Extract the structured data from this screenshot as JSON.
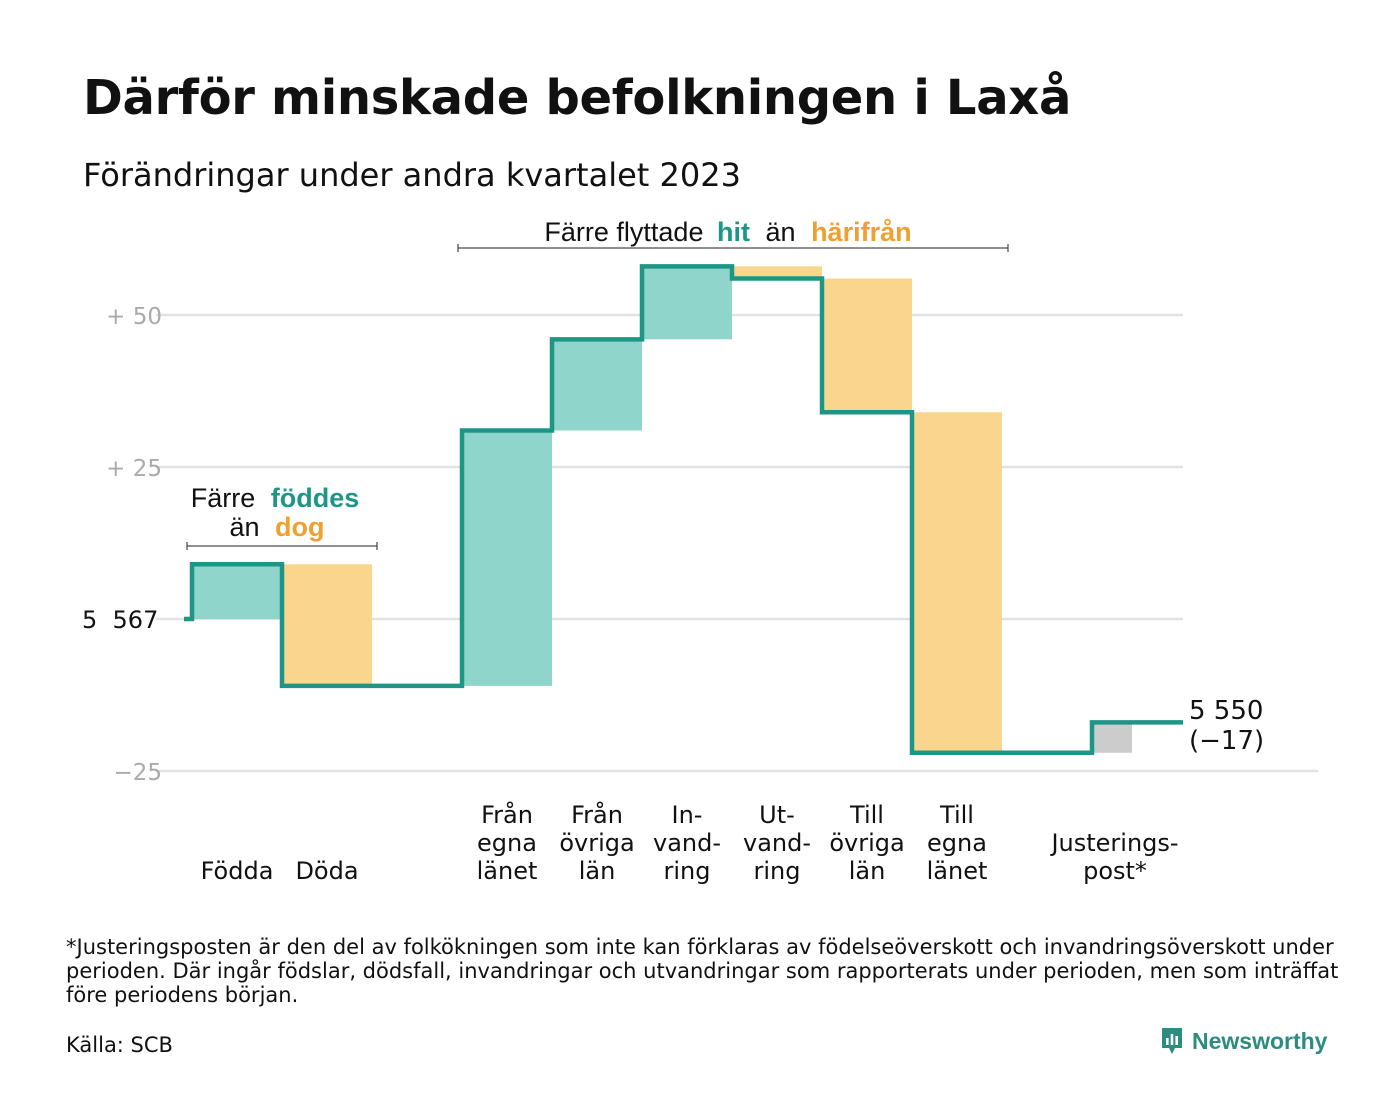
{
  "title": "Därför minskade befolkningen i Laxå",
  "subtitle": "Förändringar under andra kvartalet 2023",
  "colors": {
    "line": "#1e9686",
    "positive": "#8fd5cc",
    "negative": "#fad58e",
    "adjustment": "#cccccc",
    "hit": "#1e9686",
    "harifran": "#f0a030",
    "grid": "#e2e2e2",
    "axis_text": "#aaaaaa"
  },
  "annotations": {
    "top": {
      "prefix": "Färre flyttade",
      "hit": "hit",
      "mid": "än",
      "harifran": "härifrån"
    },
    "left": {
      "prefix": "Färre",
      "foddes": "föddes",
      "mid": "än",
      "dog": "dog"
    }
  },
  "start_label": "5  567",
  "end_label": {
    "value": "5 550",
    "change": "(−17)"
  },
  "chart_data": {
    "type": "waterfall",
    "start": 5567,
    "end": 5550,
    "total_change": -17,
    "ylim": [
      -25,
      58
    ],
    "yticks": [
      {
        "value": 50,
        "label": "+  50"
      },
      {
        "value": 25,
        "label": "+  25"
      },
      {
        "value": 0,
        "label": ""
      },
      {
        "value": -25,
        "label": "−25"
      }
    ],
    "grid": true,
    "steps": [
      {
        "label": [
          "Födda"
        ],
        "change": 9,
        "kind": "positive"
      },
      {
        "label": [
          "Döda"
        ],
        "change": -20,
        "kind": "negative"
      },
      {
        "label": [],
        "change": 0,
        "kind": "gap"
      },
      {
        "label": [
          "Från",
          "egna",
          "länet"
        ],
        "change": 42,
        "kind": "positive"
      },
      {
        "label": [
          "Från",
          "övriga",
          "län"
        ],
        "change": 15,
        "kind": "positive"
      },
      {
        "label": [
          "In-",
          "vand-",
          "ring"
        ],
        "change": 12,
        "kind": "positive"
      },
      {
        "label": [
          "Ut-",
          "vand-",
          "ring"
        ],
        "change": -2,
        "kind": "negative"
      },
      {
        "label": [
          "Till",
          "övriga",
          "län"
        ],
        "change": -22,
        "kind": "negative"
      },
      {
        "label": [
          "Till",
          "egna",
          "länet"
        ],
        "change": -56,
        "kind": "negative"
      },
      {
        "label": [],
        "change": 0,
        "kind": "gap"
      },
      {
        "label": [
          "Justerings-",
          "post*"
        ],
        "change": 5,
        "kind": "adjustment"
      }
    ]
  },
  "footnote": "*Justeringsposten är den del av folkökningen som inte kan förklaras av födelseöverskott och invandringsöverskott under perioden. Där ingår födslar, dödsfall, invandringar och utvandringar som rapporterats under perioden, men som inträffat före periodens början.",
  "source": "Källa: SCB",
  "brand": {
    "name": "Newsworthy",
    "icon": "newsworthy-logo-icon"
  }
}
